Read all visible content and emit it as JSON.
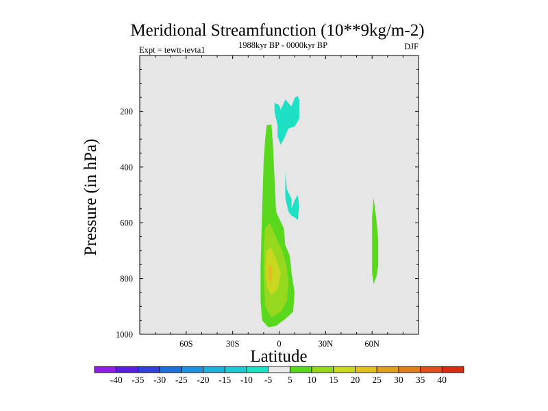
{
  "chart_data": {
    "type": "heatmap",
    "title": "Meridional Streamfunction (10**9kg/m-2)",
    "subtitle_left": "Expt = tewtt-tevta1",
    "subtitle_center": "1988kyr BP - 0000kyr BP",
    "subtitle_right": "DJF",
    "xlabel": "Latitude",
    "ylabel": "Pressure (in hPa)",
    "xlim": [
      -90,
      90
    ],
    "ylim": [
      1000,
      0
    ],
    "x_ticks": [
      {
        "value": -60,
        "label": "60S"
      },
      {
        "value": -30,
        "label": "30S"
      },
      {
        "value": 0,
        "label": "0"
      },
      {
        "value": 30,
        "label": "30N"
      },
      {
        "value": 60,
        "label": "60N"
      }
    ],
    "y_ticks": [
      {
        "value": 200,
        "label": "200"
      },
      {
        "value": 400,
        "label": "400"
      },
      {
        "value": 600,
        "label": "600"
      },
      {
        "value": 800,
        "label": "800"
      },
      {
        "value": 1000,
        "label": "1000"
      }
    ],
    "background_color": "#e6e6e6",
    "colorbar": {
      "labels": [
        "-40",
        "-35",
        "-30",
        "-25",
        "-20",
        "-15",
        "-10",
        "-5",
        "5",
        "10",
        "15",
        "20",
        "25",
        "30",
        "35",
        "40"
      ],
      "colors": [
        "#8e1ee6",
        "#5b1ee0",
        "#2f3fd8",
        "#1e6edc",
        "#1e90e0",
        "#1eb0dc",
        "#1ec8d0",
        "#1ee0c4",
        "#e8e8e8",
        "#5ad81e",
        "#96d81e",
        "#c8d81e",
        "#e0c01e",
        "#e0a01e",
        "#e07e1e",
        "#e0501e",
        "#d82a10"
      ]
    },
    "features": [
      {
        "name": "Southern low-level positive cell (outer)",
        "level": 5,
        "color": "#5ad81e",
        "polygon": [
          [
            -8,
            250
          ],
          [
            -5,
            248
          ],
          [
            -4,
            320
          ],
          [
            -2,
            560
          ],
          [
            3,
            620
          ],
          [
            4,
            680
          ],
          [
            7,
            720
          ],
          [
            8,
            780
          ],
          [
            10,
            850
          ],
          [
            9,
            920
          ],
          [
            4,
            945
          ],
          [
            -2,
            970
          ],
          [
            -7,
            975
          ],
          [
            -11,
            950
          ],
          [
            -12,
            880
          ],
          [
            -12,
            760
          ],
          [
            -11,
            560
          ],
          [
            -10,
            380
          ],
          [
            -9,
            300
          ]
        ]
      },
      {
        "name": "Southern low-level positive cell",
        "level": 10,
        "color": "#96d81e",
        "polygon": [
          [
            -9,
            620
          ],
          [
            -6,
            600
          ],
          [
            -3,
            640
          ],
          [
            2,
            700
          ],
          [
            5,
            760
          ],
          [
            6,
            820
          ],
          [
            5,
            880
          ],
          [
            1,
            920
          ],
          [
            -5,
            940
          ],
          [
            -9,
            900
          ],
          [
            -10,
            800
          ],
          [
            -10,
            700
          ]
        ]
      },
      {
        "name": "Southern low-level positive cell (core)",
        "level": 15,
        "color": "#c8d81e",
        "polygon": [
          [
            -8,
            700
          ],
          [
            -5,
            690
          ],
          [
            -2,
            730
          ],
          [
            1,
            780
          ],
          [
            -1,
            840
          ],
          [
            -5,
            860
          ],
          [
            -8,
            830
          ],
          [
            -9,
            760
          ]
        ]
      },
      {
        "name": "Southern low-level positive cell (maximum)",
        "level": 20,
        "color": "#e0c01e",
        "polygon": [
          [
            -7,
            755
          ],
          [
            -5,
            750
          ],
          [
            -4,
            780
          ],
          [
            -5,
            810
          ],
          [
            -7,
            805
          ]
        ]
      },
      {
        "name": "Upper tropospheric negative cell",
        "level": -5,
        "color": "#1ee0c4",
        "polygon": [
          [
            -3,
            170
          ],
          [
            0,
            178
          ],
          [
            1,
            195
          ],
          [
            4,
            158
          ],
          [
            8,
            183
          ],
          [
            10,
            152
          ],
          [
            12,
            145
          ],
          [
            13,
            160
          ],
          [
            13,
            228
          ],
          [
            10,
            255
          ],
          [
            6,
            262
          ],
          [
            3,
            300
          ],
          [
            1,
            320
          ],
          [
            -1,
            290
          ],
          [
            -1,
            250
          ],
          [
            -3,
            200
          ]
        ]
      },
      {
        "name": "Mid tropospheric negative cell",
        "level": -5,
        "color": "#1ee0c4",
        "polygon": [
          [
            4,
            420
          ],
          [
            5,
            480
          ],
          [
            8,
            515
          ],
          [
            8,
            548
          ],
          [
            10,
            520
          ],
          [
            12,
            500
          ],
          [
            13,
            540
          ],
          [
            12,
            590
          ],
          [
            10,
            580
          ],
          [
            8,
            575
          ],
          [
            6,
            560
          ],
          [
            4,
            510
          ]
        ]
      },
      {
        "name": "Northern high latitude positive cell",
        "level": 5,
        "color": "#5ad81e",
        "polygon": [
          [
            61,
            510
          ],
          [
            62,
            555
          ],
          [
            63,
            600
          ],
          [
            64,
            660
          ],
          [
            64,
            750
          ],
          [
            63,
            790
          ],
          [
            61,
            820
          ],
          [
            60,
            780
          ],
          [
            60,
            660
          ],
          [
            60,
            580
          ]
        ]
      }
    ]
  }
}
